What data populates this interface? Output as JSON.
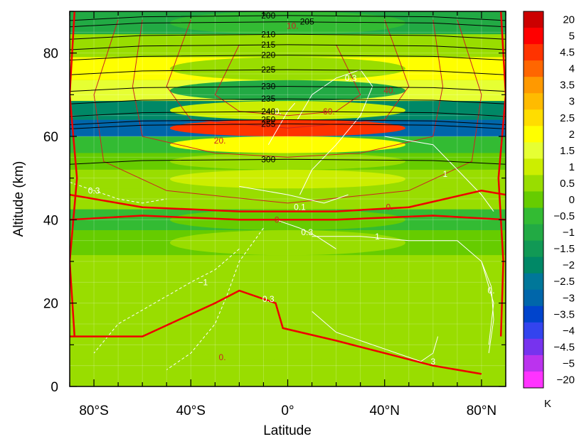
{
  "chart_data": {
    "type": "heatmap",
    "title": "",
    "xlabel": "Latitude",
    "ylabel": "Altitude (km)",
    "xlim": [
      -90,
      90
    ],
    "ylim": [
      0,
      90
    ],
    "x_ticks": [
      {
        "value": -80,
        "label": "80°S"
      },
      {
        "value": -40,
        "label": "40°S"
      },
      {
        "value": 0,
        "label": "0°"
      },
      {
        "value": 40,
        "label": "40°N"
      },
      {
        "value": 80,
        "label": "80°N"
      }
    ],
    "y_ticks": [
      {
        "value": 0,
        "label": "0"
      },
      {
        "value": 20,
        "label": "20"
      },
      {
        "value": 40,
        "label": "40"
      },
      {
        "value": 60,
        "label": "60"
      },
      {
        "value": 80,
        "label": "80"
      }
    ],
    "grid": true,
    "colorbar": {
      "unit": "K",
      "labels": [
        "20",
        "5",
        "4.5",
        "4",
        "3.5",
        "3",
        "2.5",
        "2",
        "1.5",
        "1",
        "0.5",
        "0",
        "−0.5",
        "−1",
        "−1.5",
        "−2",
        "−2.5",
        "−3",
        "−3.5",
        "−4",
        "−4.5",
        "−5",
        "−20"
      ],
      "colors": [
        "#cc0000",
        "#ff0000",
        "#ff3300",
        "#ff6600",
        "#ff9900",
        "#ffbb00",
        "#ffdd00",
        "#ffff00",
        "#e6ff33",
        "#ccee00",
        "#99dd00",
        "#66cc00",
        "#33bb33",
        "#22aa44",
        "#119955",
        "#008866",
        "#007799",
        "#0066aa",
        "#0044cc",
        "#3344ee",
        "#7733ee",
        "#bb33ee",
        "#ff33ff"
      ]
    },
    "field_bands": [
      {
        "y": 87,
        "level": -1.0,
        "center_level": -0.5
      },
      {
        "y": 82,
        "level": 0.5,
        "center_level": 0.3
      },
      {
        "y": 76,
        "level": 2.0,
        "center_level": 0.3
      },
      {
        "y": 71,
        "level": 1.5,
        "center_level": -1.0
      },
      {
        "y": 66,
        "level": -2.0,
        "center_level": 1.0
      },
      {
        "y": 62,
        "level": -3.0,
        "center_level": 4.5
      },
      {
        "y": 58,
        "level": -0.5,
        "center_level": 2.0
      },
      {
        "y": 54,
        "level": 0.0,
        "center_level": 0.5
      },
      {
        "y": 50,
        "level": 0.5,
        "center_level": 1.0
      },
      {
        "y": 45,
        "level": 0.5,
        "center_level": 0.5
      },
      {
        "y": 40,
        "level": -0.5,
        "center_level": 0.0
      },
      {
        "y": 35,
        "level": 0.0,
        "center_level": 0.3
      },
      {
        "y": 28,
        "level": 0.5,
        "center_level": 0.5
      },
      {
        "y": 20,
        "level": 0.5,
        "center_level": 0.5
      },
      {
        "y": 10,
        "level": 0.5,
        "center_level": 0.5
      },
      {
        "y": 3,
        "level": 0.3,
        "center_level": 0.5
      }
    ],
    "black_isolines": [
      {
        "label": "200",
        "y": 89,
        "label_x": -8
      },
      {
        "label": "205",
        "y": 87.5,
        "label_x": 8
      },
      {
        "label": "210",
        "y": 84.5,
        "label_x": -8
      },
      {
        "label": "215",
        "y": 82,
        "label_x": -8
      },
      {
        "label": "220",
        "y": 79.5,
        "label_x": -8
      },
      {
        "label": "225",
        "y": 76,
        "label_x": -8
      },
      {
        "label": "230",
        "y": 72,
        "label_x": -8
      },
      {
        "label": "235",
        "y": 69,
        "label_x": -8
      },
      {
        "label": "240",
        "y": 66,
        "label_x": -8
      },
      {
        "label": "250",
        "y": 64,
        "label_x": -8
      },
      {
        "label": "255",
        "y": 63,
        "label_x": -8
      },
      {
        "label": "300",
        "y": 54.5,
        "label_x": -8
      }
    ],
    "red_contours": [
      {
        "label": "10.",
        "label_x": 2,
        "label_y": 86.5,
        "points": [
          [
            -70,
            88
          ],
          [
            -80,
            70
          ],
          [
            -76,
            54
          ],
          [
            -50,
            47
          ],
          [
            0,
            44
          ],
          [
            50,
            47
          ],
          [
            76,
            54
          ],
          [
            80,
            70
          ],
          [
            70,
            88
          ]
        ]
      },
      {
        "label": "20.",
        "label_x": -28,
        "label_y": 59,
        "points": [
          [
            -60,
            88
          ],
          [
            -64,
            72
          ],
          [
            -60,
            60
          ],
          [
            -30,
            56
          ],
          [
            0,
            55
          ],
          [
            30,
            56
          ],
          [
            60,
            60
          ],
          [
            64,
            72
          ],
          [
            60,
            88
          ]
        ]
      },
      {
        "label": "40.",
        "label_x": 42,
        "label_y": 71,
        "points": [
          [
            -40,
            88
          ],
          [
            -50,
            72
          ],
          [
            -40,
            64
          ],
          [
            0,
            62
          ],
          [
            40,
            64
          ],
          [
            50,
            72
          ],
          [
            40,
            88
          ]
        ]
      },
      {
        "label": "60.",
        "label_x": 17,
        "label_y": 66,
        "points": [
          [
            -20,
            82
          ],
          [
            -30,
            70
          ],
          [
            -20,
            66
          ],
          [
            0,
            65
          ],
          [
            20,
            66
          ],
          [
            30,
            70
          ],
          [
            20,
            82
          ]
        ]
      }
    ],
    "zero_contours": [
      {
        "label": "0.",
        "label_x": 42,
        "label_y": 43,
        "points": [
          [
            -90,
            46
          ],
          [
            -60,
            43
          ],
          [
            -20,
            42
          ],
          [
            20,
            42
          ],
          [
            50,
            43
          ],
          [
            80,
            47
          ],
          [
            90,
            46
          ]
        ]
      },
      {
        "label": "0.",
        "label_x": -4,
        "label_y": 40,
        "points": [
          [
            -90,
            40
          ],
          [
            -60,
            41
          ],
          [
            -20,
            40
          ],
          [
            20,
            40
          ],
          [
            60,
            41
          ],
          [
            90,
            40
          ]
        ]
      },
      {
        "label": "0.",
        "label_x": -27,
        "label_y": 7,
        "points": [
          [
            -90,
            12
          ],
          [
            -60,
            12
          ],
          [
            -30,
            20
          ],
          [
            -20,
            23
          ],
          [
            -5,
            20
          ],
          [
            -2,
            14
          ],
          [
            20,
            11
          ],
          [
            40,
            8
          ],
          [
            60,
            5
          ],
          [
            80,
            3
          ]
        ]
      }
    ],
    "white_contours": [
      {
        "label": "0.3",
        "label_x": 26,
        "label_y": 74,
        "dashed": false,
        "points": [
          [
            4,
            64
          ],
          [
            10,
            70
          ],
          [
            20,
            74
          ],
          [
            30,
            76
          ],
          [
            35,
            72
          ],
          [
            30,
            65
          ],
          [
            20,
            58
          ],
          [
            10,
            52
          ],
          [
            5,
            46
          ]
        ]
      },
      {
        "label": "1",
        "label_x": 65,
        "label_y": 51,
        "dashed": false,
        "points": [
          [
            40,
            60
          ],
          [
            60,
            58
          ],
          [
            70,
            52
          ],
          [
            80,
            46
          ],
          [
            85,
            42
          ]
        ]
      },
      {
        "label": "1",
        "label_x": 37,
        "label_y": 36,
        "dashed": false,
        "points": [
          [
            10,
            36
          ],
          [
            30,
            36
          ],
          [
            50,
            35
          ],
          [
            70,
            35
          ],
          [
            80,
            30
          ],
          [
            85,
            20
          ],
          [
            83,
            10
          ]
        ]
      },
      {
        "label": "3",
        "label_x": 60,
        "label_y": 6,
        "dashed": false,
        "points": [
          [
            10,
            18
          ],
          [
            20,
            13
          ],
          [
            40,
            9
          ],
          [
            55,
            6
          ],
          [
            60,
            8
          ],
          [
            62,
            12
          ]
        ]
      },
      {
        "label": "0.3",
        "label_x": -8,
        "label_y": 21,
        "dashed": true,
        "points": [
          [
            -10,
            38
          ],
          [
            -20,
            30
          ],
          [
            -25,
            22
          ],
          [
            -30,
            15
          ],
          [
            -40,
            8
          ],
          [
            -50,
            4
          ]
        ]
      },
      {
        "label": "−1",
        "label_x": -35,
        "label_y": 25,
        "dashed": true,
        "points": [
          [
            -20,
            33
          ],
          [
            -30,
            28
          ],
          [
            -40,
            25
          ],
          [
            -55,
            20
          ],
          [
            -70,
            15
          ],
          [
            -80,
            8
          ]
        ]
      },
      {
        "label": "0.3",
        "label_x": -80,
        "label_y": 47,
        "dashed": true,
        "points": [
          [
            -90,
            49
          ],
          [
            -80,
            47
          ],
          [
            -70,
            45
          ],
          [
            -60,
            44
          ],
          [
            -50,
            45
          ]
        ]
      },
      {
        "label": "0.1",
        "label_x": 5,
        "label_y": 43,
        "dashed": false,
        "points": [
          [
            -20,
            48
          ],
          [
            0,
            46
          ],
          [
            15,
            44
          ],
          [
            25,
            46
          ]
        ]
      },
      {
        "label": "0.3",
        "label_x": 8,
        "label_y": 37,
        "dashed": false,
        "points": [
          [
            -5,
            40
          ],
          [
            5,
            38
          ],
          [
            12,
            36
          ],
          [
            20,
            33
          ]
        ]
      },
      {
        "label": "0.",
        "label_x": 84,
        "label_y": 23,
        "dashed": false,
        "points": [
          [
            80,
            30
          ],
          [
            84,
            24
          ],
          [
            85,
            16
          ],
          [
            83,
            8
          ]
        ]
      },
      {
        "label": "0.",
        "label_x": -4,
        "label_y": 66,
        "dashed": false,
        "points": [
          [
            -8,
            58
          ],
          [
            -4,
            62
          ],
          [
            0,
            66
          ],
          [
            3,
            68
          ]
        ]
      }
    ]
  }
}
